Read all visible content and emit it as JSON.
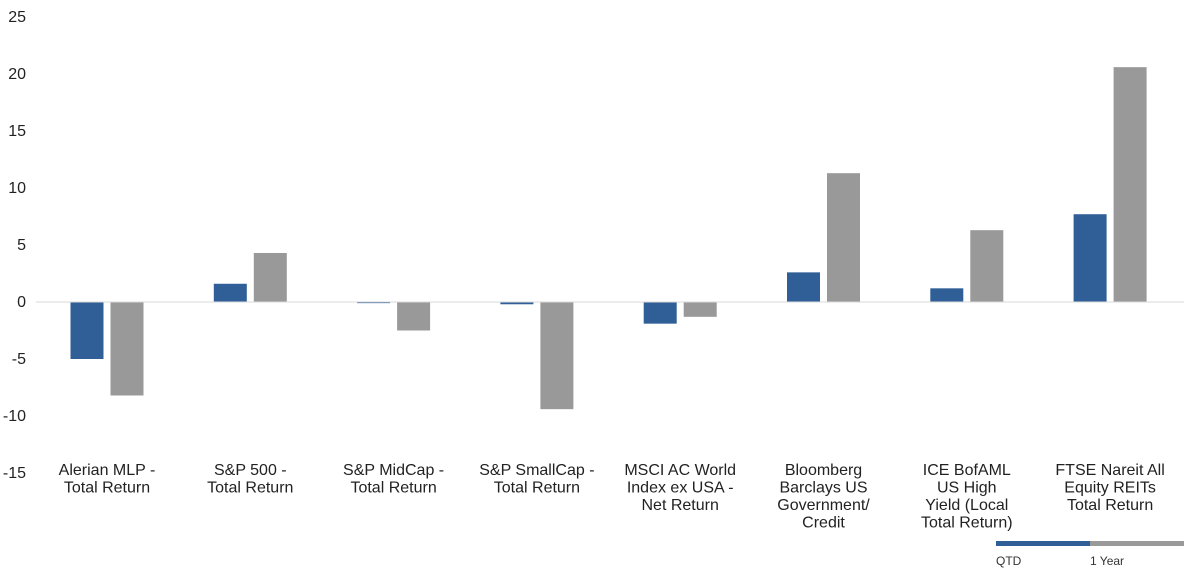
{
  "chart_data": {
    "type": "bar",
    "title": "",
    "xlabel": "",
    "ylabel": "",
    "ylim": [
      -15,
      25
    ],
    "yticks": [
      25,
      20,
      15,
      10,
      5,
      0,
      -5,
      -10,
      -15
    ],
    "grid": false,
    "legend_position": "bottom-right",
    "categories": [
      [
        "Alerian MLP -",
        "Total Return"
      ],
      [
        "S&P 500 -",
        "Total Return"
      ],
      [
        "S&P MidCap -",
        "Total Return"
      ],
      [
        "S&P SmallCap -",
        "Total Return"
      ],
      [
        "MSCI AC World",
        "Index ex USA -",
        "Net Return"
      ],
      [
        "Bloomberg",
        "Barclays US",
        "Government/",
        "Credit"
      ],
      [
        "ICE BofAML",
        "US High",
        "Yield (Local",
        "Total Return)"
      ],
      [
        "FTSE Nareit All",
        "Equity REITs",
        "Total Return"
      ]
    ],
    "series": [
      {
        "name": "QTD",
        "color": "#2f5f96",
        "values": [
          -5.0,
          1.6,
          -0.1,
          -0.2,
          -1.9,
          2.6,
          1.2,
          7.7
        ]
      },
      {
        "name": "1 Year",
        "color": "#999999",
        "values": [
          -8.2,
          4.3,
          -2.5,
          -9.4,
          -1.3,
          11.3,
          6.3,
          20.6
        ]
      }
    ]
  }
}
